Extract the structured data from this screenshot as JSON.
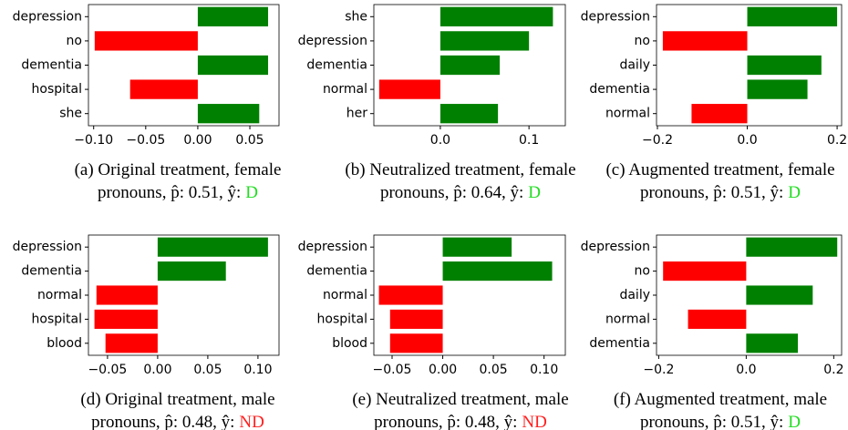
{
  "chart_data": [
    {
      "type": "barh",
      "categories": [
        "depression",
        "no",
        "dementia",
        "hospital",
        "she"
      ],
      "values": [
        0.0675,
        -0.099,
        0.0675,
        -0.065,
        0.059
      ],
      "xlim": [
        -0.105,
        0.078
      ],
      "xticks": [
        {
          "value": -0.1,
          "label": "−0.10"
        },
        {
          "value": -0.05,
          "label": "−0.05"
        },
        {
          "value": 0,
          "label": "0.00"
        },
        {
          "value": 0.05,
          "label": "0.05"
        }
      ],
      "color_positive": "#008000",
      "color_negative": "#ff0000",
      "caption": [
        "(a) Original treatment, female",
        "pronouns, p̂: 0.51, ŷ:"
      ],
      "prediction": "D",
      "prediction_color": "#22dd22"
    },
    {
      "type": "barh",
      "categories": [
        "she",
        "depression",
        "dementia",
        "normal",
        "her"
      ],
      "values": [
        0.127,
        0.1,
        0.067,
        -0.069,
        0.065
      ],
      "xlim": [
        -0.075,
        0.141
      ],
      "xticks": [
        {
          "value": 0,
          "label": "0.0"
        },
        {
          "value": 0.1,
          "label": "0.1"
        }
      ],
      "color_positive": "#008000",
      "color_negative": "#ff0000",
      "caption": [
        "(b) Neutralized treatment, female",
        "pronouns, p̂: 0.64, ŷ:"
      ],
      "prediction": "D",
      "prediction_color": "#22dd22"
    },
    {
      "type": "barh",
      "categories": [
        "depression",
        "no",
        "daily",
        "dementia",
        "normal"
      ],
      "values": [
        0.2,
        -0.188,
        0.165,
        0.134,
        -0.124
      ],
      "xlim": [
        -0.202,
        0.21
      ],
      "xticks": [
        {
          "value": -0.2,
          "label": "−0.2"
        },
        {
          "value": 0,
          "label": "0.0"
        },
        {
          "value": 0.2,
          "label": "0.2"
        }
      ],
      "color_positive": "#008000",
      "color_negative": "#ff0000",
      "caption": [
        "(c) Augmented treatment, female",
        "pronouns, p̂: 0.51, ŷ:"
      ],
      "prediction": "D",
      "prediction_color": "#22dd22"
    },
    {
      "type": "barh",
      "categories": [
        "depression",
        "dementia",
        "normal",
        "hospital",
        "blood"
      ],
      "values": [
        0.11,
        0.068,
        -0.061,
        -0.063,
        -0.052
      ],
      "xlim": [
        -0.069,
        0.121
      ],
      "xticks": [
        {
          "value": -0.05,
          "label": "−0.05"
        },
        {
          "value": 0,
          "label": "0.00"
        },
        {
          "value": 0.05,
          "label": "0.05"
        },
        {
          "value": 0.1,
          "label": "0.10"
        }
      ],
      "color_positive": "#008000",
      "color_negative": "#ff0000",
      "caption": [
        "(d) Original treatment, male",
        "pronouns, p̂: 0.48, ŷ:"
      ],
      "prediction": "ND",
      "prediction_color": "#ff2020"
    },
    {
      "type": "barh",
      "categories": [
        "depression",
        "dementia",
        "normal",
        "hospital",
        "blood"
      ],
      "values": [
        0.068,
        0.108,
        -0.063,
        -0.052,
        -0.052
      ],
      "xlim": [
        -0.068,
        0.121
      ],
      "xticks": [
        {
          "value": -0.05,
          "label": "−0.05"
        },
        {
          "value": 0,
          "label": "0.00"
        },
        {
          "value": 0.05,
          "label": "0.05"
        },
        {
          "value": 0.1,
          "label": "0.10"
        }
      ],
      "color_positive": "#008000",
      "color_negative": "#ff0000",
      "caption": [
        "(e) Neutralized treatment, male",
        "pronouns, p̂: 0.48, ŷ:"
      ],
      "prediction": "ND",
      "prediction_color": "#ff2020"
    },
    {
      "type": "barh",
      "categories": [
        "depression",
        "no",
        "daily",
        "normal",
        "dementia"
      ],
      "values": [
        0.208,
        -0.19,
        0.152,
        -0.133,
        0.118
      ],
      "xlim": [
        -0.205,
        0.218
      ],
      "xticks": [
        {
          "value": -0.2,
          "label": "−0.2"
        },
        {
          "value": 0,
          "label": "0.0"
        },
        {
          "value": 0.2,
          "label": "0.2"
        }
      ],
      "color_positive": "#008000",
      "color_negative": "#ff0000",
      "caption": [
        "(f) Augmented treatment, male",
        "pronouns, p̂: 0.51, ŷ:"
      ],
      "prediction": "D",
      "prediction_color": "#22dd22"
    }
  ]
}
